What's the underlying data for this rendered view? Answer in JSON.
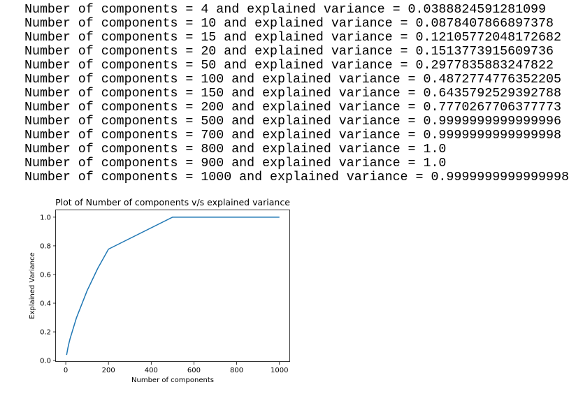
{
  "output_lines": [
    "Number of components = 4 and explained variance = 0.0388824591281099",
    "Number of components = 10 and explained variance = 0.0878407866897378",
    "Number of components = 15 and explained variance = 0.12105772048172682",
    "Number of components = 20 and explained variance = 0.1513773915609736",
    "Number of components = 50 and explained variance = 0.2977835883247822",
    "Number of components = 100 and explained variance = 0.4872774776352205",
    "Number of components = 150 and explained variance = 0.6435792529392788",
    "Number of components = 200 and explained variance = 0.7770267706377773",
    "Number of components = 500 and explained variance = 0.9999999999999996",
    "Number of components = 700 and explained variance = 0.9999999999999998",
    "Number of components = 800 and explained variance = 1.0",
    "Number of components = 900 and explained variance = 1.0",
    "Number of components = 1000 and explained variance = 0.9999999999999998"
  ],
  "chart_data": {
    "type": "line",
    "title": "Plot of Number of components v/s explained variance",
    "xlabel": "Number of components",
    "ylabel": "Explained Variance",
    "x": [
      4,
      10,
      15,
      20,
      50,
      100,
      150,
      200,
      500,
      700,
      800,
      900,
      1000
    ],
    "series": [
      {
        "values": [
          0.0388824591281099,
          0.0878407866897378,
          0.12105772048172682,
          0.1513773915609736,
          0.2977835883247822,
          0.4872774776352205,
          0.6435792529392788,
          0.7770267706377773,
          0.9999999999999996,
          0.9999999999999998,
          1.0,
          1.0,
          0.9999999999999998
        ]
      }
    ],
    "xlim": [
      -46,
      1050
    ],
    "ylim": [
      -0.0092,
      1.0481
    ],
    "xticks": [
      0,
      200,
      400,
      600,
      800,
      1000
    ],
    "xtick_labels": [
      "0",
      "200",
      "400",
      "600",
      "800",
      "1000"
    ],
    "yticks": [
      0.0,
      0.2,
      0.4,
      0.6,
      0.8,
      1.0
    ],
    "ytick_labels": [
      "0.0",
      "0.2",
      "0.4",
      "0.6",
      "0.8",
      "1.0"
    ],
    "grid": false,
    "line_color": "#1f77b4"
  }
}
